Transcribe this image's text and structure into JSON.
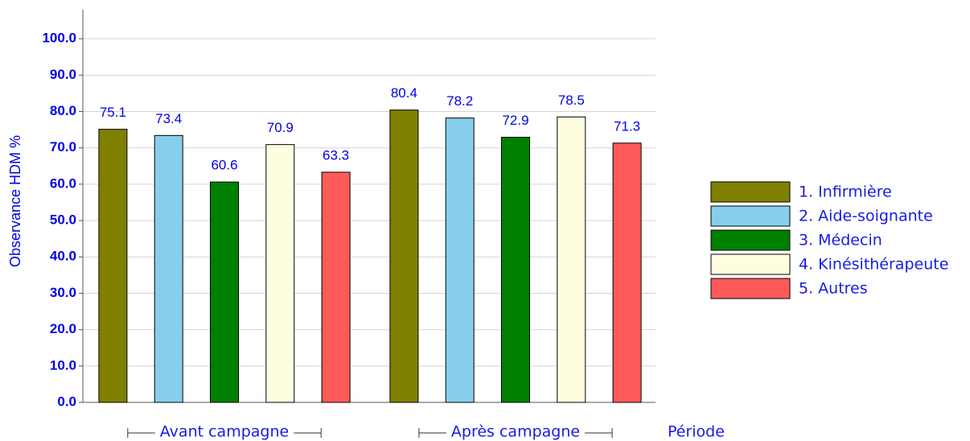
{
  "chart_data": {
    "type": "bar",
    "y_label": "Observance HDM %",
    "x_label": "Période",
    "categories": [
      "Avant campagne",
      "Après campagne"
    ],
    "series": [
      {
        "name": "1. Infirmière",
        "color": "#808000",
        "values": [
          75.1,
          80.4
        ]
      },
      {
        "name": "2. Aide-soignante",
        "color": "#87ceeb",
        "values": [
          73.4,
          78.2
        ]
      },
      {
        "name": "3. Médecin",
        "color": "#008000",
        "values": [
          60.6,
          72.9
        ]
      },
      {
        "name": "4. Kinésithérapeute",
        "color": "#fffde0",
        "values": [
          70.9,
          78.5
        ]
      },
      {
        "name": "5. Autres",
        "color": "#ff5a5a",
        "values": [
          63.3,
          71.3
        ]
      }
    ],
    "ylim": [
      0,
      108
    ],
    "yticks": [
      {
        "value": 0,
        "label": "0.0"
      },
      {
        "value": 10,
        "label": "10.0"
      },
      {
        "value": 20,
        "label": "20.0"
      },
      {
        "value": 30,
        "label": "30.0"
      },
      {
        "value": 40,
        "label": "40.0"
      },
      {
        "value": 50,
        "label": "50.0"
      },
      {
        "value": 60,
        "label": "60.0"
      },
      {
        "value": 70,
        "label": "70.0"
      },
      {
        "value": 80,
        "label": "80.0"
      },
      {
        "value": 90,
        "label": "90.0"
      },
      {
        "value": 100,
        "label": "100.0"
      }
    ],
    "grid": true,
    "legend": "right"
  }
}
